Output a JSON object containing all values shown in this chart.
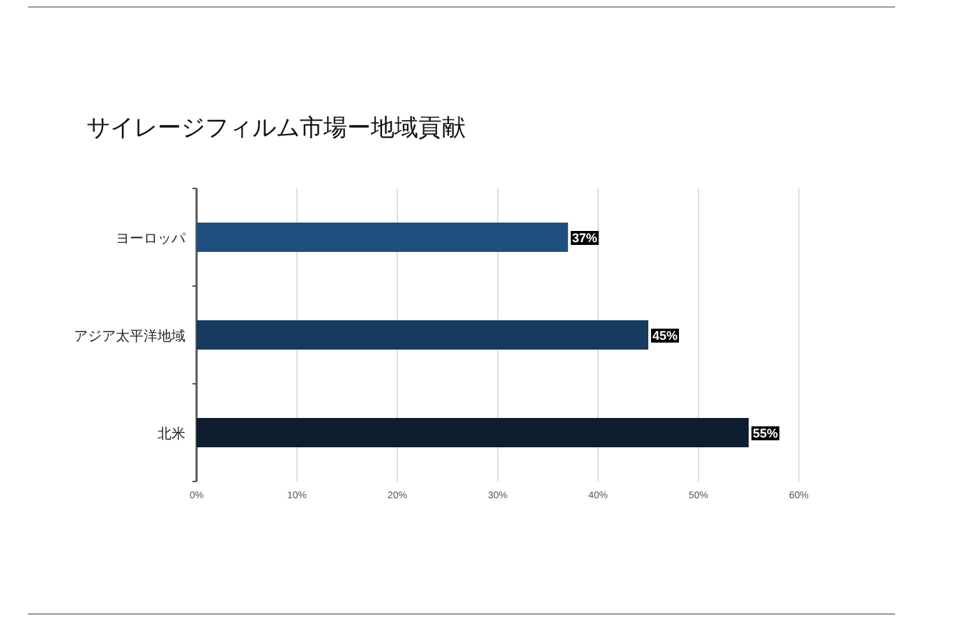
{
  "chart_data": {
    "type": "bar",
    "orientation": "horizontal",
    "title": "サイレージフィルム市場ー地域貢献",
    "categories": [
      "ヨーロッパ",
      "アジア太平洋地域",
      "北米"
    ],
    "values": [
      37,
      45,
      55
    ],
    "colors": [
      "#1f4e80",
      "#173a60",
      "#0e1e30"
    ],
    "value_labels": [
      "37%",
      "45%",
      "55%"
    ],
    "xlim": [
      0,
      60
    ],
    "xticks": [
      {
        "value": 0,
        "label": "0%"
      },
      {
        "value": 10,
        "label": "10%"
      },
      {
        "value": 20,
        "label": "20%"
      },
      {
        "value": 30,
        "label": "30%"
      },
      {
        "value": 40,
        "label": "40%"
      },
      {
        "value": 50,
        "label": "50%"
      },
      {
        "value": 60,
        "label": "60%"
      }
    ],
    "grid": "x"
  }
}
